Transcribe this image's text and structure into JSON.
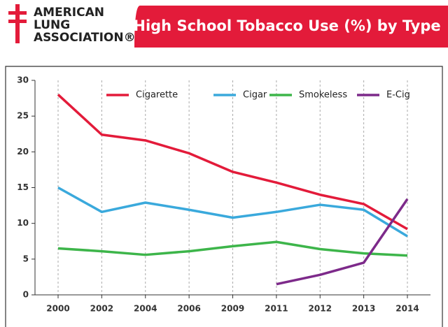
{
  "logo": [
    "AMERICAN",
    "LUNG",
    "ASSOCIATION®"
  ],
  "chart_data": {
    "type": "line",
    "title": "High School Tobacco Use (%) by Type",
    "categories": [
      "2000",
      "2002",
      "2004",
      "2006",
      "2009",
      "2011",
      "2012",
      "2013",
      "2014"
    ],
    "series": [
      {
        "name": "Cigarette",
        "color": "#e31b3a",
        "values": [
          28.0,
          22.4,
          21.6,
          19.8,
          17.2,
          15.7,
          14.0,
          12.7,
          9.2
        ]
      },
      {
        "name": "Cigar",
        "color": "#3aa9dc",
        "values": [
          15.0,
          11.6,
          12.9,
          11.9,
          10.8,
          11.6,
          12.6,
          11.9,
          8.2
        ]
      },
      {
        "name": "Smokeless",
        "color": "#3db54a",
        "values": [
          6.5,
          6.1,
          5.6,
          6.1,
          6.8,
          7.4,
          6.4,
          5.8,
          5.5
        ]
      },
      {
        "name": "E-Cig",
        "color": "#7d2a8a",
        "values": [
          null,
          null,
          null,
          null,
          null,
          1.5,
          2.8,
          4.5,
          13.4
        ]
      }
    ],
    "ylim": [
      0,
      30
    ],
    "yticks": [
      0,
      5,
      10,
      15,
      20,
      25,
      30
    ],
    "grid": true,
    "legend": "top"
  }
}
